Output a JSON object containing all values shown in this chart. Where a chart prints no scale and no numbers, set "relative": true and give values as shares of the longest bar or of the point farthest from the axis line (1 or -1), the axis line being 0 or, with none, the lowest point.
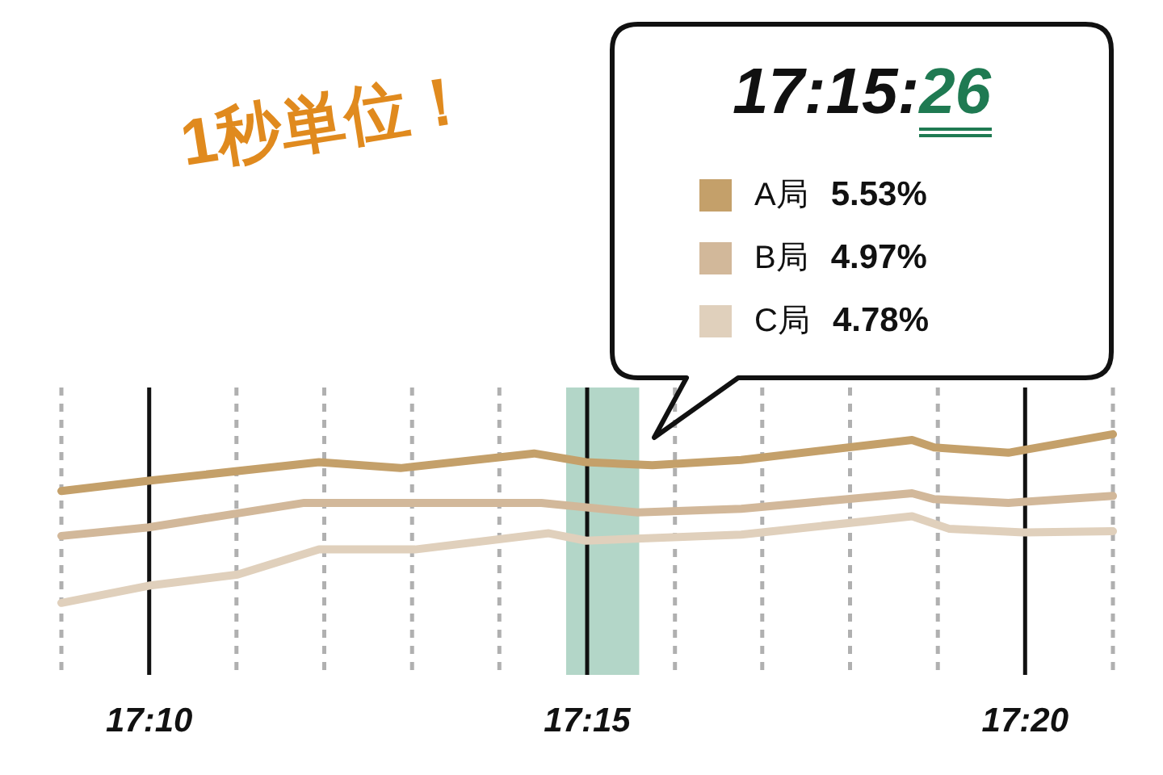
{
  "chart_data": {
    "type": "line",
    "relative": true,
    "annotations": [
      "1秒単位！",
      "17:15:26",
      "5.53%",
      "4.97%",
      "4.78%"
    ],
    "xlim": [
      17.15,
      17.35
    ],
    "xticks": [
      {
        "value": 17.15,
        "label": null
      },
      {
        "value": 17.1667,
        "label": "17:10"
      },
      {
        "value": 17.1833,
        "label": null
      },
      {
        "value": 17.2,
        "label": null
      },
      {
        "value": 17.2167,
        "label": null
      },
      {
        "value": 17.2333,
        "label": null
      },
      {
        "value": 17.25,
        "label": "17:15"
      },
      {
        "value": 17.2667,
        "label": null
      },
      {
        "value": 17.2833,
        "label": null
      },
      {
        "value": 17.3,
        "label": null
      },
      {
        "value": 17.3167,
        "label": null
      },
      {
        "value": 17.3333,
        "label": "17:20"
      },
      {
        "value": 17.35,
        "label": null
      }
    ],
    "grid": "x",
    "legend": "top right",
    "marker": "none",
    "line_style": "solid",
    "bands": [
      {
        "axis": "x",
        "from": 17.246,
        "to": 17.2599,
        "color": "#b3d6c8"
      }
    ],
    "series": [
      {
        "name": "A局",
        "color": "#c4a06a",
        "x": [
          17.15,
          17.1666,
          17.199,
          17.2145,
          17.2399,
          17.2498,
          17.2624,
          17.2793,
          17.3118,
          17.316,
          17.3301,
          17.35
        ],
        "values": [
          0.663,
          0.724,
          0.834,
          0.799,
          0.886,
          0.834,
          0.816,
          0.847,
          0.966,
          0.922,
          0.89,
          1
        ]
      },
      {
        "name": "B局",
        "color": "#d2b89a",
        "x": [
          17.15,
          17.1666,
          17.1962,
          17.2413,
          17.2596,
          17.2793,
          17.3118,
          17.316,
          17.3301,
          17.35
        ],
        "values": [
          0.397,
          0.448,
          0.593,
          0.593,
          0.536,
          0.558,
          0.65,
          0.615,
          0.593,
          0.634
        ]
      },
      {
        "name": "C局",
        "color": "#e0d0bc",
        "x": [
          17.15,
          17.1666,
          17.1835,
          17.199,
          17.2173,
          17.2427,
          17.2498,
          17.2793,
          17.3118,
          17.3188,
          17.3329,
          17.35
        ],
        "values": [
          0,
          0.102,
          0.168,
          0.317,
          0.317,
          0.413,
          0.369,
          0.405,
          0.514,
          0.44,
          0.418,
          0.425
        ]
      }
    ]
  }
}
